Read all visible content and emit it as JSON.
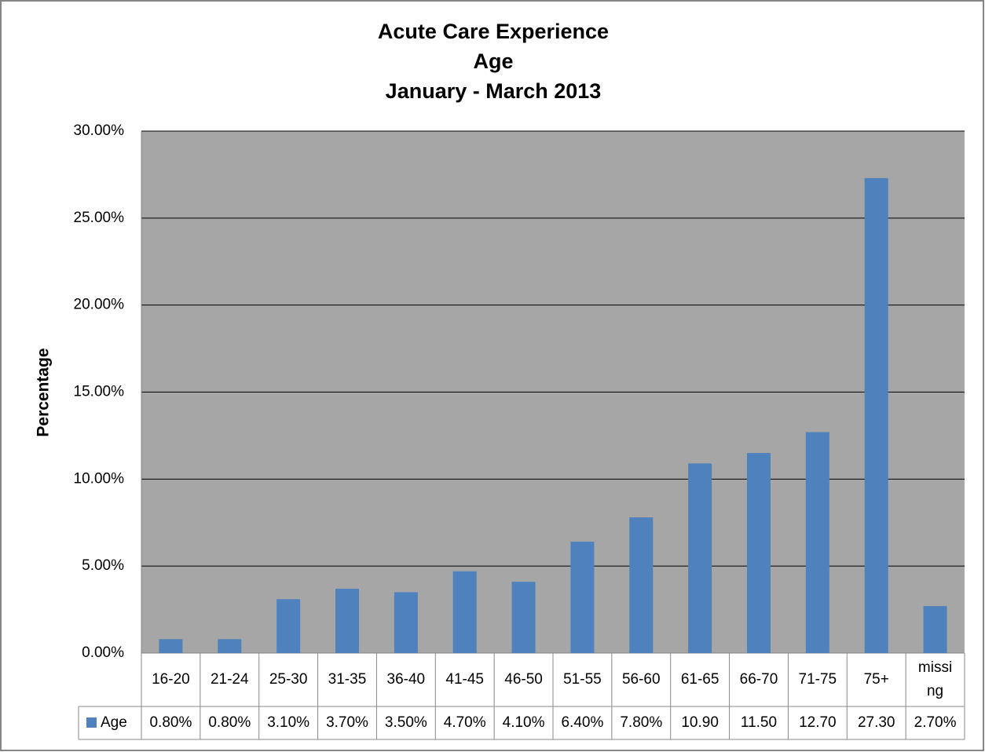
{
  "chart_data": {
    "type": "bar",
    "title": [
      "Acute Care Experience",
      "Age",
      "January - March 2013"
    ],
    "y_label": "Percentage",
    "categories": [
      "16-20",
      "21-24",
      "25-30",
      "31-35",
      "36-40",
      "41-45",
      "46-50",
      "51-55",
      "56-60",
      "61-65",
      "66-70",
      "71-75",
      "75+",
      "missing"
    ],
    "series": [
      {
        "name": "Age",
        "color": "#4f81bd",
        "values": [
          0.8,
          0.8,
          3.1,
          3.7,
          3.5,
          4.7,
          4.1,
          6.4,
          7.8,
          10.9,
          11.5,
          12.7,
          27.3,
          2.7
        ],
        "value_labels": [
          "0.80%",
          "0.80%",
          "3.10%",
          "3.70%",
          "3.50%",
          "4.70%",
          "4.10%",
          "6.40%",
          "7.80%",
          "10.90",
          "11.50",
          "12.70",
          "27.30",
          "2.70%"
        ]
      }
    ],
    "ylim": [
      0,
      30
    ],
    "yticks": [
      {
        "value": 0,
        "label": "0.00%"
      },
      {
        "value": 5,
        "label": "5.00%"
      },
      {
        "value": 10,
        "label": "10.00%"
      },
      {
        "value": 15,
        "label": "15.00%"
      },
      {
        "value": 20,
        "label": "20.00%"
      },
      {
        "value": 25,
        "label": "25.00%"
      },
      {
        "value": 30,
        "label": "30.00%"
      }
    ],
    "grid": true,
    "plot_background": "#a6a6a6"
  }
}
